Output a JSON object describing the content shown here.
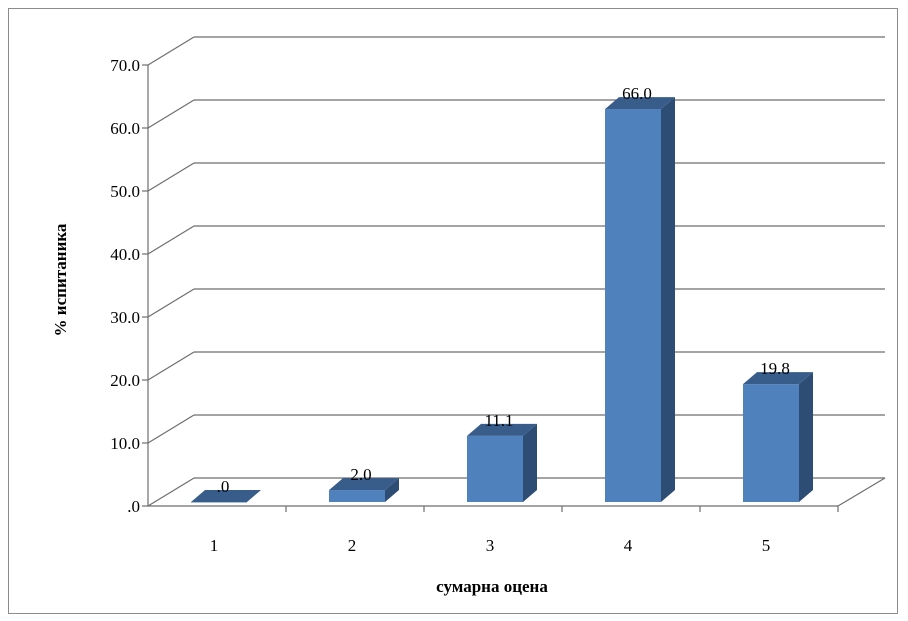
{
  "chart_data": {
    "type": "bar",
    "categories": [
      "1",
      "2",
      "3",
      "4",
      "5"
    ],
    "values": [
      0.0,
      2.0,
      11.1,
      66.0,
      19.8
    ],
    "data_labels": [
      ".0",
      "2.0",
      "11.1",
      "66.0",
      "19.8"
    ],
    "y_tick_labels": [
      ".0",
      "10.0",
      "20.0",
      "30.0",
      "40.0",
      "50.0",
      "60.0",
      "70.0"
    ],
    "ylim": [
      0,
      70
    ],
    "xlabel": "сумарна оцена",
    "ylabel": "% испитаника",
    "grid": true,
    "legend": "none",
    "style": "3d-column",
    "colors": {
      "bar_front": "#4f81bd",
      "bar_side": "#2e4d74",
      "bar_top": "#385d8a",
      "grid": "#6e6e6e"
    }
  }
}
